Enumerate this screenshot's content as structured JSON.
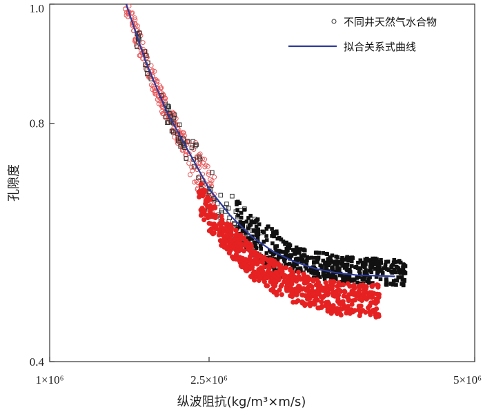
{
  "chart_data": {
    "type": "scatter",
    "xlabel": "纵波阻抗(kg/m³×m/s)",
    "ylabel": "孔隙度",
    "xlim": [
      1000000,
      5000000
    ],
    "ylim": [
      0.4,
      1.0
    ],
    "x_ticks": [
      {
        "value": 1000000,
        "label": "1×10⁶"
      },
      {
        "value": 2500000,
        "label": "2.5×10⁶"
      },
      {
        "value": 5000000,
        "label": "5×10⁶"
      }
    ],
    "y_ticks": [
      {
        "value": 0.4,
        "label": "0.4"
      },
      {
        "value": 0.8,
        "label": "0.8"
      },
      {
        "value": 1.0,
        "label": "1.0"
      }
    ],
    "legend": {
      "position": "top-right",
      "items": [
        {
          "label": "不同井天然气水合物",
          "marker": "circle"
        },
        {
          "label": "拟合关系式曲线",
          "marker": "line"
        }
      ]
    },
    "fit_curve": {
      "name": "拟合关系式曲线",
      "color": "#2b3a9a",
      "x": [
        1720000,
        1900000,
        2100000,
        2300000,
        2500000,
        2700000,
        2900000,
        3100000,
        3300000,
        3500000,
        3700000,
        3900000,
        4100000,
        4250000
      ],
      "y": [
        1.0,
        0.905,
        0.82,
        0.755,
        0.69,
        0.645,
        0.61,
        0.585,
        0.568,
        0.556,
        0.549,
        0.545,
        0.544,
        0.543
      ]
    },
    "scatter_groups": [
      {
        "color": "#e8585a",
        "style": "hollow-circle",
        "x_range": [
          1700000,
          2550000
        ],
        "trend": "fit"
      },
      {
        "color": "#333333",
        "style": "hollow-square",
        "x_range": [
          1820000,
          3000000
        ],
        "trend": "fit"
      },
      {
        "color": "#111111",
        "style": "filled-square",
        "x_range": [
          2750000,
          4350000
        ],
        "trend": "fit"
      },
      {
        "color": "#e62121",
        "style": "filled-circle",
        "x_range": [
          2400000,
          4100000
        ],
        "trend": "below-fit"
      }
    ],
    "grid": false
  }
}
